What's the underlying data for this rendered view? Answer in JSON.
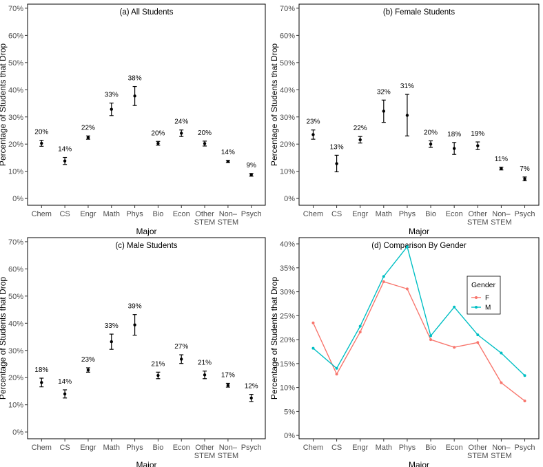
{
  "chart_data": [
    {
      "type": "scatter",
      "title": "(a) All Students",
      "xlabel": "Major",
      "ylabel": "Percentage of Students that Drop",
      "categories": [
        "Chem",
        "CS",
        "Engr",
        "Math",
        "Phys",
        "Bio",
        "Econ",
        "Other STEM",
        "Non– STEM",
        "Psych"
      ],
      "values": [
        20.3,
        13.8,
        22.4,
        32.8,
        37.7,
        20.3,
        24.0,
        20.2,
        13.6,
        8.7
      ],
      "error_low": [
        19.2,
        12.5,
        21.8,
        30.5,
        34.2,
        19.6,
        22.8,
        19.3,
        13.2,
        8.2
      ],
      "error_high": [
        21.4,
        15.1,
        23.0,
        35.1,
        41.2,
        21.0,
        25.2,
        21.1,
        14.0,
        9.2
      ],
      "data_labels": [
        "20%",
        "14%",
        "22%",
        "33%",
        "38%",
        "20%",
        "24%",
        "20%",
        "14%",
        "9%"
      ],
      "yticks": [
        "0%",
        "10%",
        "20%",
        "30%",
        "40%",
        "50%",
        "60%",
        "70%"
      ],
      "ylim": [
        -2.5,
        71.5
      ]
    },
    {
      "type": "scatter",
      "title": "(b) Female Students",
      "xlabel": "Major",
      "ylabel": "Percentage of Students that Drop",
      "categories": [
        "Chem",
        "CS",
        "Engr",
        "Math",
        "Phys",
        "Bio",
        "Econ",
        "Other STEM",
        "Non– STEM",
        "Psych"
      ],
      "values": [
        23.5,
        12.8,
        21.6,
        32.1,
        30.6,
        20.0,
        18.4,
        19.4,
        11.0,
        7.2
      ],
      "error_low": [
        21.8,
        9.8,
        20.4,
        28.0,
        23.0,
        18.8,
        16.2,
        18.0,
        10.5,
        6.5
      ],
      "error_high": [
        25.2,
        15.9,
        22.8,
        36.2,
        38.3,
        21.2,
        20.6,
        20.8,
        11.5,
        7.9
      ],
      "data_labels": [
        "23%",
        "13%",
        "22%",
        "32%",
        "31%",
        "20%",
        "18%",
        "19%",
        "11%",
        "7%"
      ],
      "yticks": [
        "0%",
        "10%",
        "20%",
        "30%",
        "40%",
        "50%",
        "60%",
        "70%"
      ],
      "ylim": [
        -2.5,
        71.5
      ]
    },
    {
      "type": "scatter",
      "title": "(c) Male Students",
      "xlabel": "Major",
      "ylabel": "Percentage of Students that Drop",
      "categories": [
        "Chem",
        "CS",
        "Engr",
        "Math",
        "Phys",
        "Bio",
        "Econ",
        "Other STEM",
        "Non– STEM",
        "Psych"
      ],
      "values": [
        18.2,
        14.0,
        22.8,
        33.2,
        39.4,
        20.8,
        26.8,
        21.0,
        17.2,
        12.5
      ],
      "error_low": [
        16.6,
        12.5,
        22.0,
        30.4,
        35.6,
        19.6,
        25.2,
        19.6,
        16.5,
        11.2
      ],
      "error_high": [
        19.8,
        15.5,
        23.6,
        36.0,
        43.2,
        22.0,
        28.4,
        22.4,
        17.9,
        13.8
      ],
      "data_labels": [
        "18%",
        "14%",
        "23%",
        "33%",
        "39%",
        "21%",
        "27%",
        "21%",
        "17%",
        "12%"
      ],
      "yticks": [
        "0%",
        "10%",
        "20%",
        "30%",
        "40%",
        "50%",
        "60%",
        "70%"
      ],
      "ylim": [
        -2.5,
        71.5
      ]
    },
    {
      "type": "line",
      "title": "(d) Comparison By Gender",
      "xlabel": "Major",
      "ylabel": "Percentage of Students that Drop",
      "categories": [
        "Chem",
        "CS",
        "Engr",
        "Math",
        "Phys",
        "Bio",
        "Econ",
        "Other STEM",
        "Non– STEM",
        "Psych"
      ],
      "series": [
        {
          "name": "F",
          "color": "#F8766D",
          "values": [
            23.5,
            12.8,
            21.6,
            32.1,
            30.6,
            20.0,
            18.4,
            19.4,
            11.0,
            7.2
          ]
        },
        {
          "name": "M",
          "color": "#00BFC4",
          "values": [
            18.2,
            14.0,
            22.8,
            33.2,
            39.4,
            20.8,
            26.8,
            21.0,
            17.2,
            12.5
          ]
        }
      ],
      "legend_title": "Gender",
      "legend_position": "upper-right",
      "yticks": [
        "0%",
        "5%",
        "10%",
        "15%",
        "20%",
        "25%",
        "30%",
        "35%",
        "40%"
      ],
      "ylim": [
        -0.7,
        41.3
      ]
    }
  ]
}
